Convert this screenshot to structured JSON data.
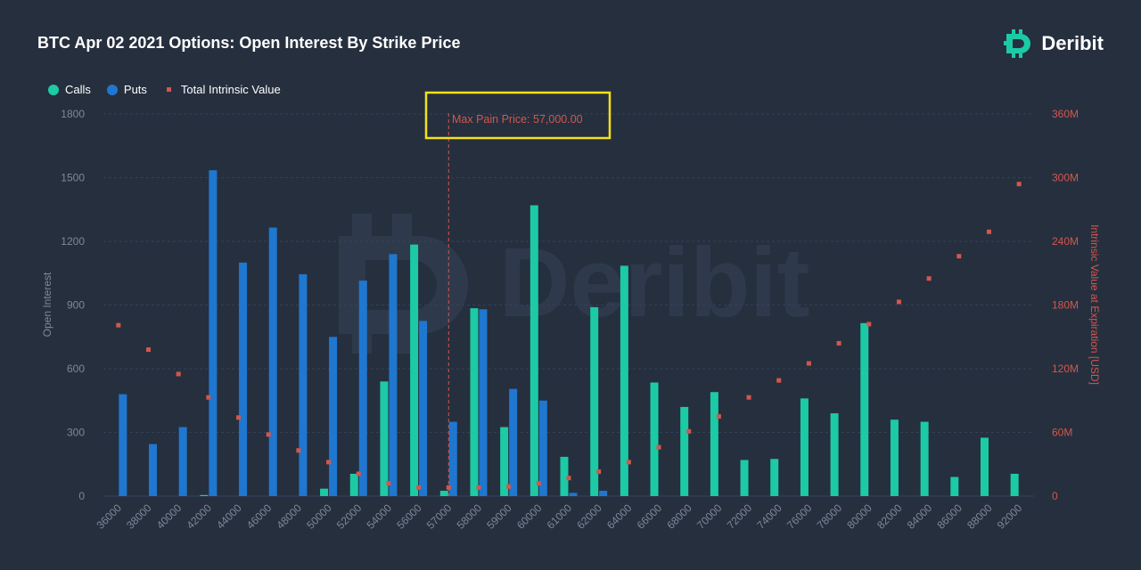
{
  "title": "BTC Apr 02 2021 Options: Open Interest By Strike Price",
  "brand": {
    "name": "Deribit",
    "watermark": "Deribit"
  },
  "colors": {
    "calls": "#1ccaa6",
    "puts": "#1f77d0",
    "intrinsic": "#d2574d",
    "annotation_box": "#f5e11a",
    "background": "#262f3e",
    "grid": "#34405a"
  },
  "legend": {
    "calls": "Calls",
    "puts": "Puts",
    "intrinsic": "Total Intrinsic Value"
  },
  "annotation": {
    "label": "Max Pain Price: 57,000.00",
    "strike": "57000"
  },
  "chart_data": {
    "type": "bar",
    "title": "BTC Apr 02 2021 Options: Open Interest By Strike Price",
    "xlabel": "",
    "ylabel": "Open Interest",
    "y2label": "Intrinsic Value at Expiration [USD]",
    "ylim": [
      0,
      1800
    ],
    "y2lim": [
      0,
      360
    ],
    "yticks": [
      "0",
      "300",
      "600",
      "900",
      "1200",
      "1500",
      "1800"
    ],
    "y2ticks": [
      "0",
      "60M",
      "120M",
      "180M",
      "240M",
      "300M",
      "360M"
    ],
    "grid": true,
    "legend_position": "top-left",
    "categories": [
      "36000",
      "38000",
      "40000",
      "42000",
      "44000",
      "46000",
      "48000",
      "50000",
      "52000",
      "54000",
      "56000",
      "57000",
      "58000",
      "59000",
      "60000",
      "61000",
      "62000",
      "64000",
      "66000",
      "68000",
      "70000",
      "72000",
      "74000",
      "76000",
      "78000",
      "80000",
      "82000",
      "84000",
      "86000",
      "88000",
      "92000"
    ],
    "series": [
      {
        "name": "Calls",
        "type": "bar",
        "values": [
          0,
          0,
          0,
          5,
          0,
          0,
          0,
          35,
          105,
          540,
          1185,
          25,
          885,
          325,
          1370,
          185,
          890,
          1085,
          535,
          420,
          490,
          170,
          175,
          460,
          390,
          815,
          360,
          350,
          90,
          275,
          105
        ]
      },
      {
        "name": "Puts",
        "type": "bar",
        "values": [
          480,
          245,
          325,
          1535,
          1100,
          1265,
          1045,
          750,
          1015,
          1140,
          825,
          350,
          880,
          505,
          450,
          15,
          25,
          0,
          0,
          0,
          0,
          0,
          0,
          0,
          0,
          0,
          0,
          0,
          0,
          0,
          0
        ]
      },
      {
        "name": "Total Intrinsic Value",
        "type": "scatter",
        "axis": "right",
        "unit": "M USD",
        "values": [
          161,
          138,
          115,
          93,
          74,
          58,
          43,
          32,
          21,
          12,
          8,
          8,
          8,
          9,
          12,
          17,
          23,
          32,
          46,
          61,
          75,
          93,
          109,
          125,
          144,
          162,
          183,
          205,
          226,
          249,
          294
        ]
      }
    ]
  }
}
